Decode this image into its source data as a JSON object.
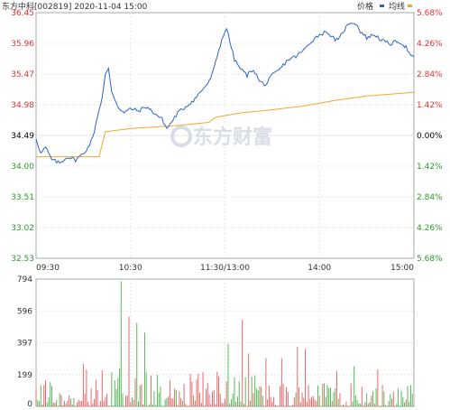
{
  "title": "东方中科[002819] 2020-11-04 15:00",
  "legend": [
    {
      "label": "价格",
      "color": "#2e64c8"
    },
    {
      "label": "均线",
      "color": "#f0a830"
    }
  ],
  "watermark": "东方财富",
  "colors": {
    "up": "#e03030",
    "down": "#2a9a2a",
    "neutral": "#000000",
    "vol_up": "#e56a6a",
    "vol_down": "#5cb85c",
    "grid": "#e6e6e6",
    "axis": "#aaaaaa"
  },
  "chart_data": {
    "type": "line",
    "prev_close": 34.49,
    "y_ticks_left": [
      "36.45",
      "35.96",
      "35.47",
      "34.98",
      "34.49",
      "34.00",
      "33.51",
      "33.02",
      "32.53"
    ],
    "y_ticks_right": [
      "5.68%",
      "4.26%",
      "2.84%",
      "1.42%",
      "0.00%",
      "1.42%",
      "2.84%",
      "4.26%",
      "5.68%"
    ],
    "ylim": [
      32.53,
      36.45
    ],
    "x_ticks": [
      "09:30",
      "10:30",
      "11:30/13:00",
      "14:00",
      "15:00"
    ],
    "n_minutes": 241,
    "price_keypoints": [
      [
        0,
        34.45
      ],
      [
        3,
        34.2
      ],
      [
        6,
        34.3
      ],
      [
        10,
        34.1
      ],
      [
        15,
        34.05
      ],
      [
        20,
        34.15
      ],
      [
        25,
        34.1
      ],
      [
        30,
        34.2
      ],
      [
        33,
        34.3
      ],
      [
        36,
        34.45
      ],
      [
        39,
        34.8
      ],
      [
        42,
        35.1
      ],
      [
        44,
        35.45
      ],
      [
        46,
        35.55
      ],
      [
        48,
        35.2
      ],
      [
        52,
        34.95
      ],
      [
        56,
        34.85
      ],
      [
        60,
        34.92
      ],
      [
        65,
        34.88
      ],
      [
        70,
        34.95
      ],
      [
        75,
        34.85
      ],
      [
        80,
        34.75
      ],
      [
        83,
        34.6
      ],
      [
        86,
        34.7
      ],
      [
        90,
        34.85
      ],
      [
        95,
        34.95
      ],
      [
        100,
        35.05
      ],
      [
        105,
        35.2
      ],
      [
        110,
        35.35
      ],
      [
        113,
        35.55
      ],
      [
        116,
        35.85
      ],
      [
        119,
        36.1
      ],
      [
        121,
        36.2
      ],
      [
        123,
        36.0
      ],
      [
        126,
        35.7
      ],
      [
        130,
        35.55
      ],
      [
        134,
        35.45
      ],
      [
        138,
        35.55
      ],
      [
        142,
        35.35
      ],
      [
        146,
        35.3
      ],
      [
        150,
        35.45
      ],
      [
        155,
        35.55
      ],
      [
        160,
        35.7
      ],
      [
        165,
        35.75
      ],
      [
        170,
        35.85
      ],
      [
        175,
        36.0
      ],
      [
        180,
        36.1
      ],
      [
        185,
        36.15
      ],
      [
        188,
        36.05
      ],
      [
        192,
        36.0
      ],
      [
        195,
        36.15
      ],
      [
        198,
        36.25
      ],
      [
        200,
        36.3
      ],
      [
        203,
        36.28
      ],
      [
        206,
        36.15
      ],
      [
        210,
        36.05
      ],
      [
        215,
        36.1
      ],
      [
        220,
        36.0
      ],
      [
        225,
        35.95
      ],
      [
        230,
        36.0
      ],
      [
        235,
        35.9
      ],
      [
        238,
        35.75
      ],
      [
        241,
        35.72
      ]
    ],
    "avg_keypoints": [
      [
        0,
        34.15
      ],
      [
        40,
        34.15
      ],
      [
        44,
        34.55
      ],
      [
        60,
        34.6
      ],
      [
        90,
        34.65
      ],
      [
        110,
        34.7
      ],
      [
        114,
        34.78
      ],
      [
        130,
        34.85
      ],
      [
        150,
        34.9
      ],
      [
        170,
        34.96
      ],
      [
        190,
        35.05
      ],
      [
        210,
        35.12
      ],
      [
        241,
        35.18
      ]
    ],
    "volume_ticks": [
      "794",
      "596",
      "397",
      "199",
      "0"
    ],
    "volume_max": 794,
    "volume_seed": 20201104
  }
}
